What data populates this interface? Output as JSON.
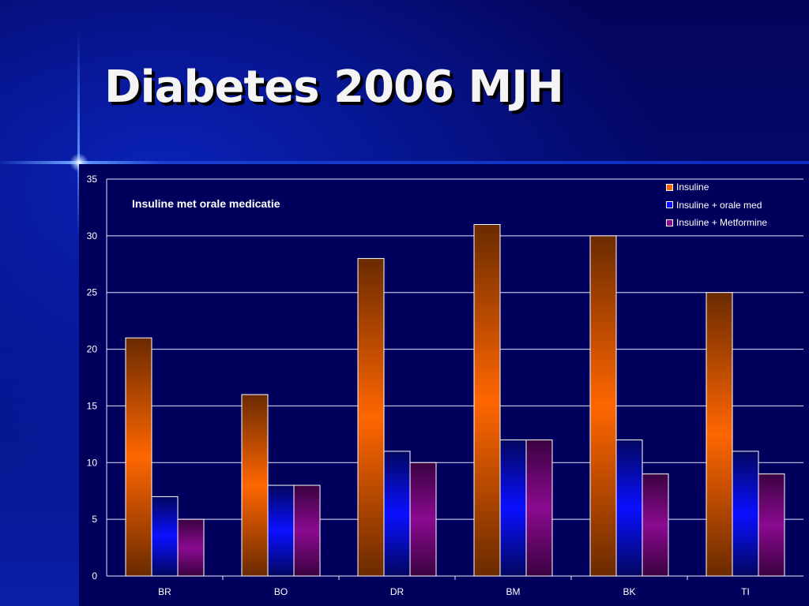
{
  "slide": {
    "title": "Diabetes 2006 MJH"
  },
  "chart_data": {
    "type": "bar",
    "title": "Insuline met orale medicatie",
    "xlabel": "",
    "ylabel": "",
    "categories": [
      "BR",
      "BO",
      "DR",
      "BM",
      "BK",
      "TI"
    ],
    "series": [
      {
        "name": "Insuline",
        "values": [
          21,
          16,
          28,
          31,
          30,
          25
        ],
        "color": "#ff6600",
        "color_dark": "#6a2a00"
      },
      {
        "name": "Insuline + orale med",
        "values": [
          7,
          8,
          11,
          12,
          12,
          11
        ],
        "color": "#0a10ff",
        "color_dark": "#020660"
      },
      {
        "name": "Insuline + Metformine",
        "values": [
          5,
          8,
          10,
          12,
          9,
          9
        ],
        "color": "#8a0a90",
        "color_dark": "#3a0240"
      }
    ],
    "ylim": [
      0,
      35
    ],
    "yticks": [
      0,
      5,
      10,
      15,
      20,
      25,
      30,
      35
    ],
    "grid": true,
    "legend_position": "top-right",
    "colors": {
      "plot_background": "#00005c",
      "gridline": "#e6e6ff",
      "text": "#ffffff"
    }
  }
}
